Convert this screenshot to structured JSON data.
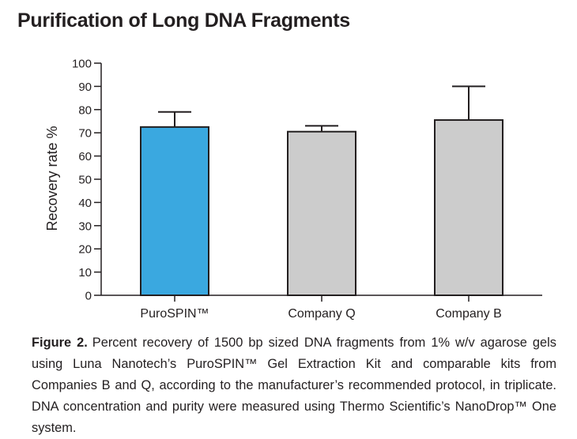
{
  "title": "Purification of Long DNA Fragments",
  "chart_data": {
    "type": "bar",
    "categories": [
      "PuroSPIN™",
      "Company Q",
      "Company B"
    ],
    "values": [
      72.5,
      70.5,
      75.5
    ],
    "error_upper": [
      79,
      73,
      90
    ],
    "colors": [
      "#3aa8e0",
      "#cccccc",
      "#cccccc"
    ],
    "ylabel": "Recovery rate %",
    "xlabel": "",
    "ylim": [
      0,
      100
    ],
    "yticks": [
      0,
      10,
      20,
      30,
      40,
      50,
      60,
      70,
      80,
      90,
      100
    ],
    "grid": false
  },
  "caption": {
    "label": "Figure 2.",
    "text": "Percent recovery of 1500 bp sized DNA fragments from 1% w/v agarose gels using Luna Nanotech’s PuroSPIN™ Gel Extraction Kit and comparable kits from Companies B and Q, according to the manufacturer’s recommended protocol, in triplicate. DNA concentration and purity were measured using Thermo Scientific’s NanoDrop™ One system."
  }
}
